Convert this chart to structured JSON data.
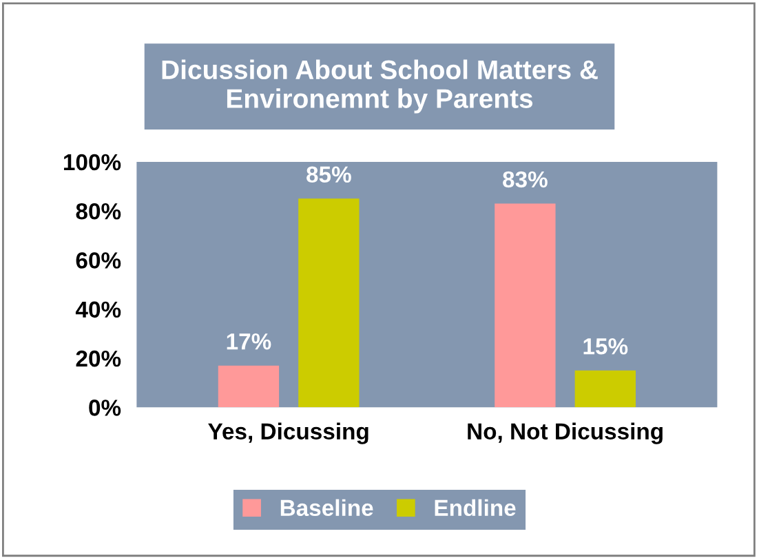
{
  "chart_data": {
    "type": "bar",
    "title": "Dicussion About School Matters &\nEnvironemnt by Parents",
    "categories": [
      "Yes, Dicussing",
      "No, Not Dicussing"
    ],
    "series": [
      {
        "name": "Baseline",
        "color": "#ff9999",
        "values": [
          17,
          83
        ],
        "value_labels": [
          "17%",
          "83%"
        ]
      },
      {
        "name": "Endline",
        "color": "#cccc00",
        "values": [
          85,
          15
        ],
        "value_labels": [
          "85%",
          "15%"
        ]
      }
    ],
    "ylim": [
      0,
      100
    ],
    "yticks": [
      {
        "value": 0,
        "label": "0%"
      },
      {
        "value": 20,
        "label": "20%"
      },
      {
        "value": 40,
        "label": "40%"
      },
      {
        "value": 60,
        "label": "60%"
      },
      {
        "value": 80,
        "label": "80%"
      },
      {
        "value": 100,
        "label": "100%"
      }
    ],
    "grid": false,
    "legend": "bottom"
  }
}
